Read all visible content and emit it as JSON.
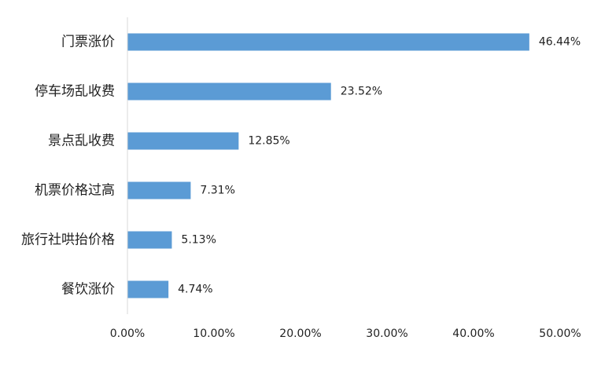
{
  "chart_data": {
    "type": "bar",
    "orientation": "horizontal",
    "categories": [
      "门票涨价",
      "停车场乱收费",
      "景点乱收费",
      "机票价格过高",
      "旅行社哄抬价格",
      "餐饮涨价"
    ],
    "values": [
      46.44,
      23.52,
      12.85,
      7.31,
      5.13,
      4.74
    ],
    "data_labels": [
      "46.44%",
      "23.52%",
      "12.85%",
      "7.31%",
      "5.13%",
      "4.74%"
    ],
    "x_ticks": [
      0,
      10,
      20,
      30,
      40,
      50
    ],
    "x_tick_labels": [
      "0.00%",
      "10.00%",
      "20.00%",
      "30.00%",
      "40.00%",
      "50.00%"
    ],
    "xlim": [
      0,
      50
    ],
    "title": "",
    "xlabel": "",
    "ylabel": "",
    "grid": false,
    "legend": "none",
    "bar_color": "#5b9bd5",
    "axis_color": "#d9d9d9"
  }
}
